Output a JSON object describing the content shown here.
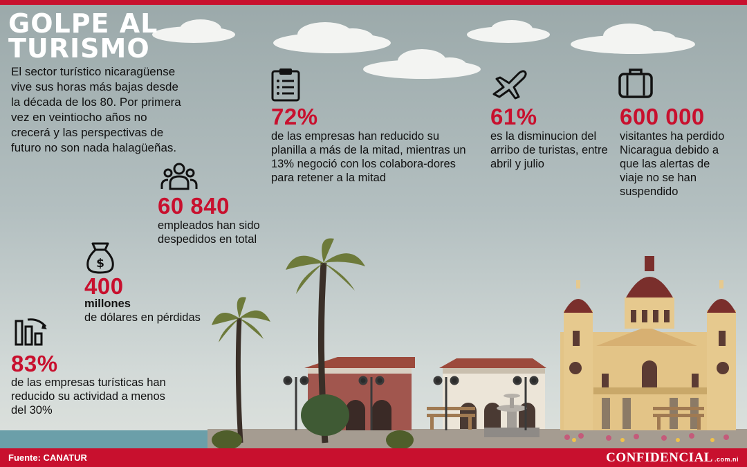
{
  "title": "GOLPE AL TURISMO",
  "intro": "El sector turístico nicaragüense vive sus horas más bajas desde la década de los 80. Por primera vez en veintiocho años no crecerá y las perspectivas de futuro no son nada halagüeñas.",
  "stats": {
    "empresas_planilla": {
      "value": "72%",
      "text": "de las empresas han reducido su planilla a más de la mitad, mientras un 13% negoció con los colabora-dores para retener a la mitad",
      "icon": "clipboard-icon"
    },
    "arribo": {
      "value": "61%",
      "text": "es la disminucion del arribo de turistas, entre abril y julio",
      "icon": "airplane-icon"
    },
    "visitantes": {
      "value": "600 000",
      "text": "visitantes ha perdido Nicaragua debido a que las alertas de viaje no se han suspendido",
      "icon": "suitcase-icon"
    },
    "empleados": {
      "value": "60 840",
      "text": "empleados han sido despedidos en total",
      "icon": "people-icon"
    },
    "perdidas": {
      "value": "400",
      "unit": "millones",
      "text": "de dólares en pérdidas",
      "icon": "money-bag-icon"
    },
    "actividad": {
      "value": "83%",
      "text": "de las empresas turísticas han reducido su actividad a menos del 30%",
      "icon": "bar-decline-icon"
    }
  },
  "footer": {
    "source": "Fuente: CANATUR",
    "brand": "CONFIDENCIAL",
    "brand_domain": ".com.ni"
  },
  "colors": {
    "accent": "#c8102e",
    "sky": "#aab6b7",
    "text": "#111111"
  }
}
